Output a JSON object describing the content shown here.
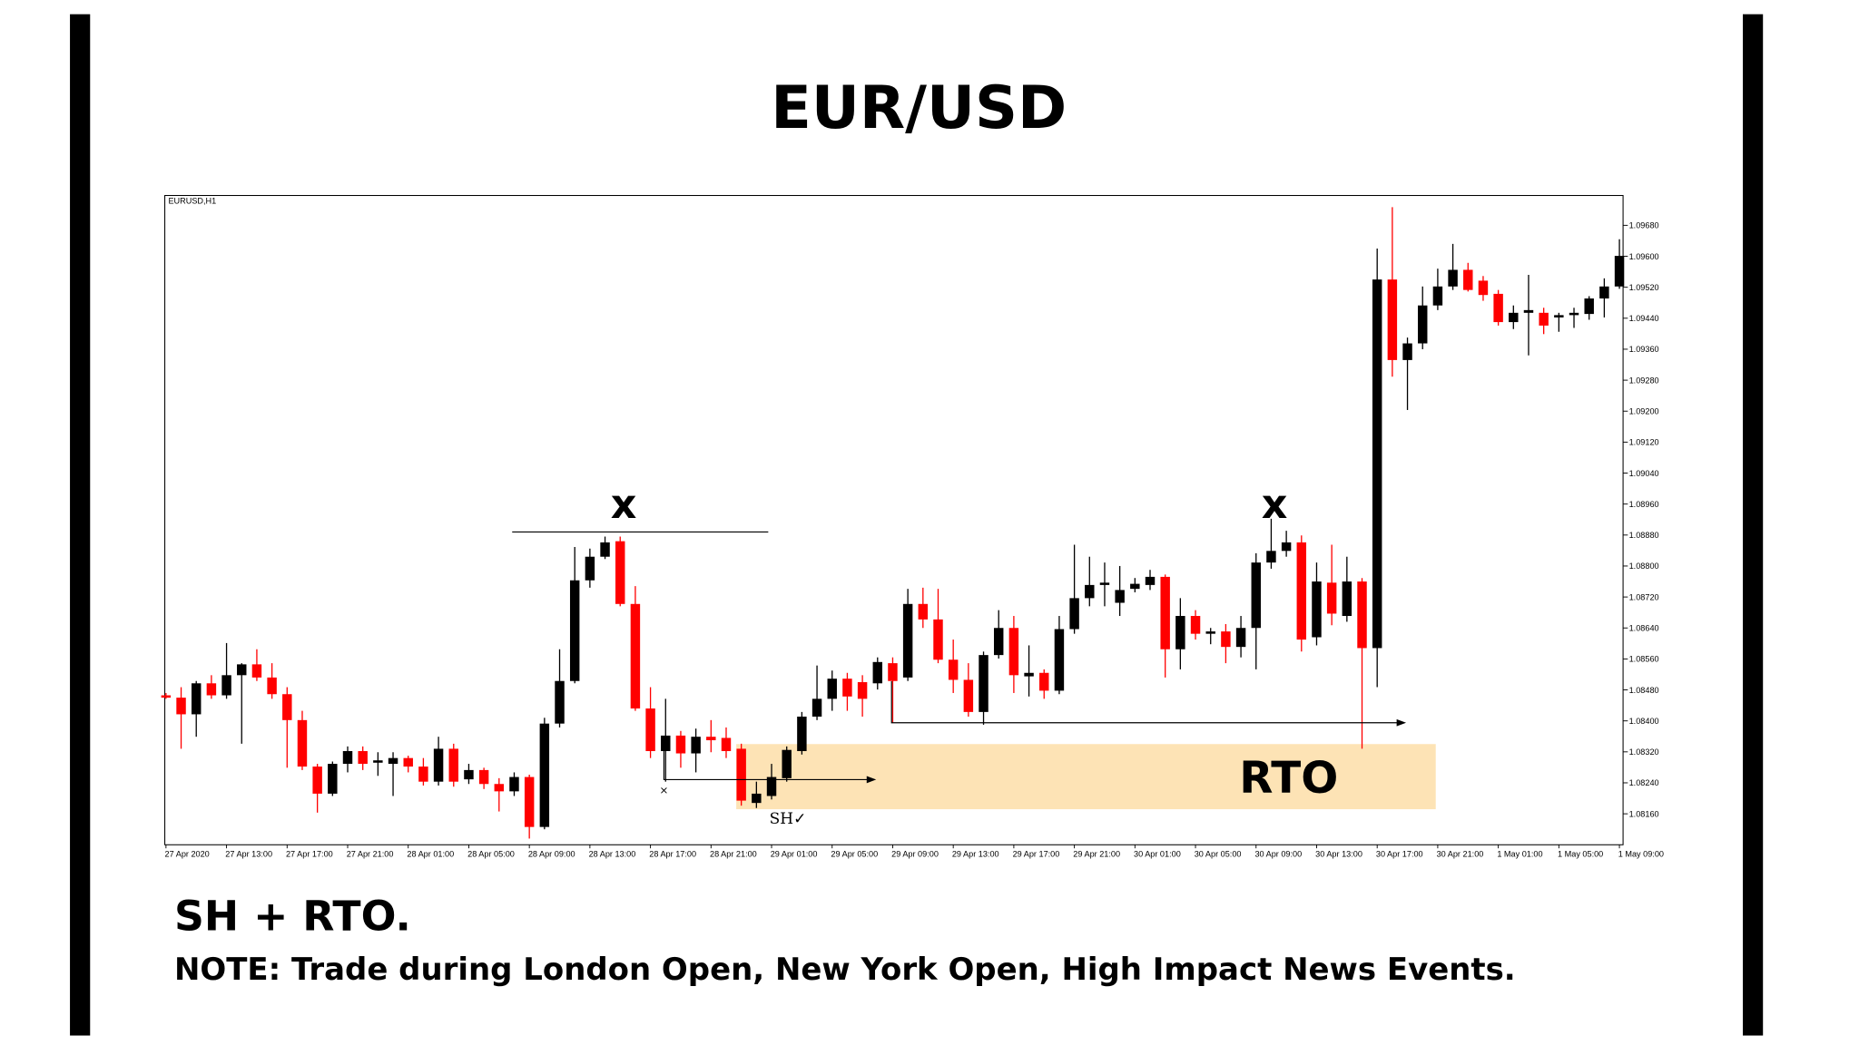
{
  "chart_data": {
    "type": "candlestick",
    "title": "EUR/USD",
    "symbol_label": "EURUSD,H1",
    "up_color": "#000000",
    "down_color": "#ff0000",
    "annotations": {
      "swing_mark_1": "x",
      "swing_mark_2": "x",
      "zone_label": "RTO",
      "sh_label": "SH✓"
    },
    "categories": [
      "27 Apr 2020",
      null,
      null,
      null,
      "27 Apr 13:00",
      null,
      null,
      null,
      "27 Apr 17:00",
      null,
      null,
      null,
      "27 Apr 21:00",
      null,
      null,
      null,
      "28 Apr 01:00",
      null,
      null,
      null,
      "28 Apr 05:00",
      null,
      null,
      null,
      "28 Apr 09:00",
      null,
      null,
      null,
      "28 Apr 13:00",
      null,
      null,
      null,
      "28 Apr 17:00",
      null,
      null,
      null,
      "28 Apr 21:00",
      null,
      null,
      null,
      "29 Apr 01:00",
      null,
      null,
      null,
      "29 Apr 05:00",
      null,
      null,
      null,
      "29 Apr 09:00",
      null,
      null,
      null,
      "29 Apr 13:00",
      null,
      null,
      null,
      "29 Apr 17:00",
      null,
      null,
      null,
      "29 Apr 21:00",
      null,
      null,
      null,
      "30 Apr 01:00",
      null,
      null,
      null,
      "30 Apr 05:00",
      null,
      null,
      null,
      "30 Apr 09:00",
      null,
      null,
      null,
      "30 Apr 13:00",
      null,
      null,
      null,
      "30 Apr 17:00",
      null,
      null,
      null,
      "30 Apr 21:00",
      null,
      null,
      null,
      "1 May 01:00",
      null,
      null,
      null,
      "1 May 05:00",
      null,
      null,
      null,
      "1 May 09:00"
    ],
    "open": [
      1.08466,
      1.0846,
      1.08417,
      1.08497,
      1.08466,
      1.08518,
      1.08546,
      1.08512,
      1.08469,
      1.08402,
      1.08282,
      1.08212,
      1.08289,
      1.08322,
      1.08292,
      1.08289,
      1.08304,
      1.08282,
      1.08243,
      1.08328,
      1.08249,
      1.08273,
      1.08237,
      1.08218,
      1.08255,
      1.08126,
      1.08393,
      1.08503,
      1.08763,
      1.08824,
      1.08864,
      1.08702,
      1.08432,
      1.08322,
      1.08362,
      1.08316,
      1.08359,
      1.08356,
      1.08328,
      1.08188,
      1.08206,
      1.08252,
      1.08322,
      1.08411,
      1.08457,
      1.08509,
      1.085,
      1.08497,
      1.08549,
      1.08512,
      1.08702,
      1.08662,
      1.08558,
      1.08506,
      1.08423,
      1.0857,
      1.0864,
      1.08515,
      1.08524,
      1.08478,
      1.08637,
      1.08717,
      1.08751,
      1.08705,
      1.08741,
      1.08751,
      1.08772,
      1.08585,
      1.08671,
      1.08625,
      1.08631,
      1.08591,
      1.0864,
      1.08809,
      1.08839,
      1.08861,
      1.08616,
      1.08757,
      1.08671,
      1.0876,
      1.08588,
      1.0954,
      1.09332,
      1.09375,
      1.09473,
      1.09522,
      1.09565,
      1.09537,
      1.09503,
      1.0943,
      1.09454,
      1.09454,
      1.09442,
      1.09448,
      1.09451,
      1.09491,
      1.09522
    ],
    "high": [
      1.08472,
      1.08487,
      1.08503,
      1.08518,
      1.08601,
      1.08549,
      1.08585,
      1.08549,
      1.08487,
      1.08426,
      1.08289,
      1.08295,
      1.08334,
      1.08334,
      1.08319,
      1.08319,
      1.0831,
      1.08304,
      1.08359,
      1.08341,
      1.08289,
      1.08279,
      1.08252,
      1.08267,
      1.08261,
      1.08408,
      1.08585,
      1.08849,
      1.08845,
      1.08876,
      1.08876,
      1.08748,
      1.08487,
      1.08457,
      1.08374,
      1.0838,
      1.08402,
      1.08383,
      1.08341,
      1.08243,
      1.08289,
      1.08334,
      1.08423,
      1.08543,
      1.0853,
      1.08524,
      1.08518,
      1.08564,
      1.08564,
      1.08741,
      1.08744,
      1.08741,
      1.0861,
      1.08549,
      1.08579,
      1.08686,
      1.08671,
      1.08595,
      1.08533,
      1.08671,
      1.08855,
      1.08824,
      1.08809,
      1.088,
      1.08769,
      1.0879,
      1.08778,
      1.08717,
      1.08686,
      1.0864,
      1.0865,
      1.08671,
      1.08833,
      1.08922,
      1.08891,
      1.08879,
      1.08809,
      1.08855,
      1.08824,
      1.08769,
      1.0962,
      1.09727,
      1.0939,
      1.09522,
      1.09568,
      1.09632,
      1.09583,
      1.09549,
      1.09513,
      1.09473,
      1.09552,
      1.09467,
      1.09454,
      1.09467,
      1.09497,
      1.09543,
      1.09644
    ],
    "low": [
      1.08457,
      1.08328,
      1.08359,
      1.08457,
      1.08457,
      1.08341,
      1.08503,
      1.08457,
      1.08279,
      1.08273,
      1.08163,
      1.08206,
      1.08267,
      1.08273,
      1.08258,
      1.08206,
      1.08267,
      1.08233,
      1.08233,
      1.0823,
      1.08237,
      1.08224,
      1.08166,
      1.08206,
      1.08096,
      1.0812,
      1.08383,
      1.08497,
      1.08744,
      1.08818,
      1.08696,
      1.08426,
      1.08304,
      1.08243,
      1.08279,
      1.08267,
      1.08319,
      1.08304,
      1.08181,
      1.08175,
      1.08197,
      1.08243,
      1.08313,
      1.08402,
      1.08426,
      1.08426,
      1.08411,
      1.08481,
      1.08396,
      1.08503,
      1.0864,
      1.08549,
      1.08472,
      1.08411,
      1.0839,
      1.08561,
      1.08472,
      1.08463,
      1.08457,
      1.08469,
      1.08625,
      1.08696,
      1.08696,
      1.08671,
      1.08732,
      1.08738,
      1.08512,
      1.08533,
      1.0861,
      1.08598,
      1.08549,
      1.08564,
      1.08533,
      1.08793,
      1.08824,
      1.08579,
      1.08595,
      1.08647,
      1.08656,
      1.08328,
      1.08487,
      1.09289,
      1.09203,
      1.0936,
      1.09461,
      1.09513,
      1.09509,
      1.09485,
      1.09421,
      1.09412,
      1.09344,
      1.09399,
      1.09405,
      1.09415,
      1.09436,
      1.09442,
      1.09516
    ],
    "close": [
      1.0846,
      1.08417,
      1.08497,
      1.08466,
      1.08518,
      1.08546,
      1.08512,
      1.08469,
      1.08402,
      1.08282,
      1.08212,
      1.08289,
      1.08322,
      1.08289,
      1.08298,
      1.08304,
      1.08282,
      1.08243,
      1.08328,
      1.08243,
      1.08273,
      1.08237,
      1.08218,
      1.08255,
      1.08126,
      1.08393,
      1.08503,
      1.08763,
      1.08824,
      1.08861,
      1.08702,
      1.08432,
      1.08322,
      1.08362,
      1.08316,
      1.08359,
      1.0835,
      1.08322,
      1.08194,
      1.08212,
      1.08255,
      1.08325,
      1.08411,
      1.08457,
      1.08509,
      1.08463,
      1.08457,
      1.08552,
      1.08503,
      1.08702,
      1.08662,
      1.08558,
      1.08506,
      1.08423,
      1.0857,
      1.0864,
      1.08518,
      1.08524,
      1.08478,
      1.08637,
      1.08717,
      1.08751,
      1.08757,
      1.08738,
      1.08754,
      1.08772,
      1.08585,
      1.08671,
      1.08625,
      1.08631,
      1.08591,
      1.0864,
      1.08809,
      1.08839,
      1.08861,
      1.0861,
      1.0876,
      1.08677,
      1.0876,
      1.08588,
      1.0954,
      1.09332,
      1.09375,
      1.09473,
      1.09522,
      1.09565,
      1.09513,
      1.095,
      1.0943,
      1.09454,
      1.09461,
      1.09421,
      1.09448,
      1.09454,
      1.09491,
      1.09522,
      1.09601
    ],
    "ylim": [
      1.0808,
      1.09757
    ],
    "yticks": [
      {
        "value": 1.0816,
        "label": "1.08160"
      },
      {
        "value": 1.0824,
        "label": "1.08240"
      },
      {
        "value": 1.0832,
        "label": "1.08320"
      },
      {
        "value": 1.084,
        "label": "1.08400"
      },
      {
        "value": 1.0848,
        "label": "1.08480"
      },
      {
        "value": 1.0856,
        "label": "1.08560"
      },
      {
        "value": 1.0864,
        "label": "1.08640"
      },
      {
        "value": 1.0872,
        "label": "1.08720"
      },
      {
        "value": 1.088,
        "label": "1.08800"
      },
      {
        "value": 1.0888,
        "label": "1.08880"
      },
      {
        "value": 1.0896,
        "label": "1.08960"
      },
      {
        "value": 1.0904,
        "label": "1.09040"
      },
      {
        "value": 1.0912,
        "label": "1.09120"
      },
      {
        "value": 1.092,
        "label": "1.09200"
      },
      {
        "value": 1.0928,
        "label": "1.09280"
      },
      {
        "value": 1.0936,
        "label": "1.09360"
      },
      {
        "value": 1.0944,
        "label": "1.09440"
      },
      {
        "value": 1.0952,
        "label": "1.09520"
      },
      {
        "value": 1.096,
        "label": "1.09600"
      },
      {
        "value": 1.0968,
        "label": "1.09680"
      }
    ],
    "grid": false
  },
  "footer": {
    "caption": "SH + RTO.",
    "note": "NOTE: Trade during London Open, New York Open, High Impact News Events."
  }
}
